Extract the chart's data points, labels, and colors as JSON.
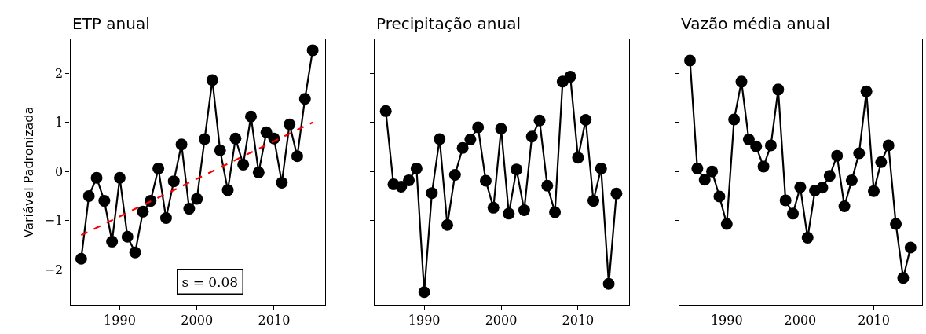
{
  "chart_data": [
    {
      "type": "line",
      "title": "ETP anual",
      "ylabel": "Variável Padronizada",
      "x": [
        1985,
        1986,
        1987,
        1988,
        1989,
        1990,
        1991,
        1992,
        1993,
        1994,
        1995,
        1996,
        1997,
        1998,
        1999,
        2000,
        2001,
        2002,
        2003,
        2004,
        2005,
        2006,
        2007,
        2008,
        2009,
        2010,
        2011,
        2012,
        2013,
        2014,
        2015
      ],
      "series": [
        {
          "color": "#000000",
          "marker": "circle",
          "line_style": "solid",
          "values": [
            -1.78,
            -0.5,
            -0.13,
            -0.6,
            -1.43,
            -0.13,
            -1.33,
            -1.65,
            -0.82,
            -0.6,
            0.06,
            -0.95,
            -0.2,
            0.55,
            -0.76,
            -0.56,
            0.66,
            1.86,
            0.43,
            -0.38,
            0.67,
            0.14,
            1.12,
            -0.02,
            0.8,
            0.67,
            -0.23,
            0.96,
            0.31,
            1.48,
            2.47
          ]
        },
        {
          "type": "line",
          "color": "#ff0000",
          "marker": "none",
          "line_style": "dashed",
          "x": [
            1985,
            2015
          ],
          "values": [
            -1.3,
            1.0
          ]
        }
      ],
      "xlim": [
        1983.6,
        2016.6
      ],
      "ylim": [
        -2.72,
        2.69
      ],
      "xticks": [
        1990,
        2000,
        2010
      ],
      "yticks": [
        {
          "value": -2,
          "label": "−2"
        },
        {
          "value": -1,
          "label": "−1"
        },
        0,
        1,
        2
      ],
      "annotations": [
        "s = 0.08"
      ]
    },
    {
      "type": "line",
      "title": "Precipitação anual",
      "x": [
        1985,
        1986,
        1987,
        1988,
        1989,
        1990,
        1991,
        1992,
        1993,
        1994,
        1995,
        1996,
        1997,
        1998,
        1999,
        2000,
        2001,
        2002,
        2003,
        2004,
        2005,
        2006,
        2007,
        2008,
        2009,
        2010,
        2011,
        2012,
        2013,
        2014,
        2015
      ],
      "series": [
        {
          "color": "#000000",
          "marker": "circle",
          "line_style": "solid",
          "values": [
            1.23,
            -0.26,
            -0.31,
            -0.18,
            0.06,
            -2.46,
            -0.44,
            0.66,
            -1.09,
            -0.07,
            0.48,
            0.65,
            0.9,
            -0.19,
            -0.74,
            0.87,
            -0.86,
            0.04,
            -0.79,
            0.71,
            1.04,
            -0.29,
            -0.83,
            1.83,
            1.93,
            0.28,
            1.05,
            -0.6,
            0.06,
            -2.29,
            -0.45
          ]
        }
      ],
      "xlim": [
        1983.6,
        2016.6
      ],
      "ylim": [
        -2.72,
        2.69
      ],
      "xticks": [
        1990,
        2000,
        2010
      ],
      "yticks": [
        {
          "value": -2,
          "label": null
        },
        {
          "value": -1,
          "label": null
        },
        {
          "value": 0,
          "label": null
        },
        {
          "value": 1,
          "label": null
        },
        {
          "value": 2,
          "label": null
        }
      ],
      "tick_labels": "x"
    },
    {
      "type": "line",
      "title": "Vazão média anual",
      "x": [
        1985,
        1986,
        1987,
        1988,
        1989,
        1990,
        1991,
        1992,
        1993,
        1994,
        1995,
        1996,
        1997,
        1998,
        1999,
        2000,
        2001,
        2002,
        2003,
        2004,
        2005,
        2006,
        2007,
        2008,
        2009,
        2010,
        2011,
        2012,
        2013,
        2014,
        2015
      ],
      "series": [
        {
          "color": "#000000",
          "marker": "circle",
          "line_style": "solid",
          "values": [
            2.26,
            0.06,
            -0.17,
            0.0,
            -0.51,
            -1.07,
            1.06,
            1.83,
            0.65,
            0.51,
            0.1,
            0.53,
            1.67,
            -0.59,
            -0.86,
            -0.32,
            -1.35,
            -0.39,
            -0.33,
            -0.09,
            0.32,
            -0.71,
            -0.18,
            0.37,
            1.63,
            -0.4,
            0.19,
            0.53,
            -1.07,
            -2.17,
            -1.55
          ]
        }
      ],
      "xlim": [
        1983.6,
        2016.6
      ],
      "ylim": [
        -2.72,
        2.69
      ],
      "xticks": [
        1990,
        2000,
        2010
      ],
      "yticks": [
        {
          "value": -2,
          "label": null
        },
        {
          "value": -1,
          "label": null
        },
        {
          "value": 0,
          "label": null
        },
        {
          "value": 1,
          "label": null
        },
        {
          "value": 2,
          "label": null
        }
      ],
      "tick_labels": "x"
    }
  ]
}
